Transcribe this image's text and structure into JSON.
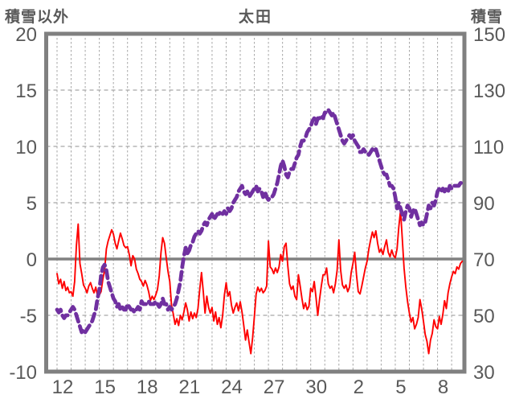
{
  "title": "太田",
  "colors": {
    "red_series": "#ff0000",
    "purple_series": "#7030a0",
    "axis_frame": "#808080",
    "zero_line": "#808080",
    "gridline": "#a6a6a6",
    "label_text": "#595959",
    "background": "#ffffff"
  },
  "chart_data": {
    "type": "line",
    "title": "太田",
    "left_axis": {
      "label": "積雪以外",
      "min": -10,
      "max": 20,
      "ticks": [
        20,
        15,
        10,
        5,
        0,
        -5,
        -10
      ]
    },
    "right_axis": {
      "label": "積雪",
      "min": 30,
      "max": 150,
      "ticks": [
        150,
        130,
        110,
        90,
        70,
        50,
        30
      ]
    },
    "x_axis": {
      "tick_labels": [
        "12",
        "15",
        "18",
        "21",
        "24",
        "27",
        "30",
        "2",
        "5",
        "8"
      ],
      "start": "1/12 00:00",
      "interval_hours": 3,
      "days_shown": 29,
      "gridlines": "daily-vertical-dashed"
    },
    "legend": "none",
    "grid": true,
    "series": [
      {
        "name": "積雪以外",
        "axis": "left",
        "color": "#ff0000",
        "line_style": "solid",
        "values": [
          -1.3,
          -2.2,
          -1.8,
          -2.6,
          -2.0,
          -2.8,
          -2.5,
          -3.0,
          -2.9,
          -3.3,
          -2.0,
          1.2,
          3.1,
          -0.4,
          -1.3,
          -2.3,
          -2.6,
          -3.0,
          -2.4,
          -2.1,
          -2.6,
          -3.0,
          -2.5,
          -3.3,
          -3.2,
          -2.9,
          -1.8,
          -1.0,
          0.9,
          1.6,
          2.1,
          2.6,
          2.2,
          1.4,
          0.9,
          1.6,
          2.3,
          1.8,
          1.2,
          1.0,
          1.1,
          0.4,
          -0.6,
          0.3,
          0.0,
          -0.9,
          -1.3,
          -1.8,
          -2.0,
          -2.4,
          -1.9,
          -2.3,
          -2.9,
          -3.7,
          -3.3,
          -3.6,
          -3.2,
          -2.7,
          -1.5,
          0.6,
          1.9,
          1.4,
          0.1,
          -1.1,
          -2.0,
          -4.1,
          -4.9,
          -5.8,
          -5.3,
          -5.9,
          -5.0,
          -5.4,
          -4.7,
          -3.9,
          -4.5,
          -5.5,
          -4.7,
          -5.3,
          -4.8,
          -5.2,
          -4.4,
          -2.7,
          -1.2,
          -2.9,
          -4.8,
          -3.3,
          -4.3,
          -4.8,
          -4.3,
          -5.5,
          -4.7,
          -5.8,
          -5.2,
          -6.1,
          -5.0,
          -3.2,
          -2.1,
          -3.3,
          -2.9,
          -4.1,
          -4.8,
          -4.3,
          -3.9,
          -4.6,
          -3.8,
          -4.7,
          -5.9,
          -7.2,
          -6.3,
          -7.4,
          -8.4,
          -7.0,
          -5.1,
          -3.1,
          -2.5,
          -2.9,
          -2.6,
          -3.0,
          -2.8,
          -2.4,
          1.6,
          -0.7,
          -0.9,
          -1.3,
          -0.8,
          -1.2,
          -0.7,
          0.4,
          -0.2,
          1.1,
          1.4,
          -0.6,
          -2.2,
          -2.7,
          -2.4,
          -3.3,
          -3.6,
          -1.4,
          -2.4,
          -3.5,
          -4.4,
          -3.9,
          -4.5,
          -4.2,
          -2.6,
          -2.9,
          -2.0,
          -3.4,
          -5.0,
          -3.6,
          -2.4,
          -1.4,
          -1.4,
          -0.8,
          -2.2,
          -2.6,
          -2.4,
          -3.0,
          -2.2,
          -1.0,
          1.7,
          -1.0,
          -2.3,
          -2.6,
          -2.3,
          -2.9,
          -2.5,
          -1.2,
          -0.4,
          0.6,
          -1.4,
          -2.9,
          -3.1,
          -2.4,
          -1.6,
          -0.8,
          -0.2,
          0.9,
          1.7,
          2.4,
          1.9,
          2.5,
          1.4,
          0.6,
          0.9,
          0.4,
          1.1,
          1.7,
          0.6,
          0.2,
          0.8,
          0.3,
          0.1,
          0.9,
          2.8,
          4.3,
          1.8,
          -0.8,
          -2.5,
          -3.8,
          -4.8,
          -5.6,
          -5.2,
          -6.2,
          -5.8,
          -5.2,
          -3.6,
          -4.4,
          -5.5,
          -6.7,
          -7.3,
          -8.4,
          -7.2,
          -6.6,
          -5.4,
          -6.0,
          -6.2,
          -5.1,
          -5.8,
          -4.9,
          -3.7,
          -4.4,
          -3.0,
          -2.2,
          -1.6,
          -1.1,
          -1.3,
          -0.7,
          -0.9,
          -0.4,
          -0.2
        ]
      },
      {
        "name": "積雪",
        "axis": "right",
        "unit": "cm",
        "color": "#7030a0",
        "line_style": "dashed",
        "values": [
          52,
          51,
          52,
          50,
          49,
          50,
          50,
          51,
          52,
          53,
          52,
          50,
          48,
          46,
          44,
          45,
          44,
          45,
          46,
          47,
          48,
          50,
          52,
          56,
          59,
          64,
          67,
          68,
          66,
          62,
          60,
          58,
          56,
          55,
          53,
          54,
          52,
          53,
          52,
          52,
          54,
          53,
          52,
          52,
          51,
          52,
          53,
          52,
          55,
          54,
          54,
          54,
          55,
          54,
          54,
          54,
          55,
          54,
          53,
          54,
          56,
          54,
          54,
          52,
          53,
          52,
          53,
          54,
          56,
          59,
          62,
          67,
          71,
          74,
          72,
          73,
          75,
          76,
          78,
          79,
          80,
          79,
          80,
          82,
          83,
          82,
          84,
          85,
          86,
          84,
          85,
          86,
          86,
          87,
          86,
          87,
          86,
          88,
          87,
          88,
          90,
          91,
          92,
          94,
          95,
          96,
          94,
          93,
          94,
          92,
          93,
          94,
          95,
          96,
          94,
          95,
          94,
          92,
          94,
          92,
          91,
          92,
          92,
          93,
          95,
          97,
          100,
          103,
          105,
          103,
          100,
          99,
          101,
          102,
          102,
          104,
          106,
          107,
          110,
          112,
          112,
          113,
          115,
          116,
          117,
          119,
          120,
          118,
          120,
          120,
          121,
          120,
          122,
          122,
          123,
          122,
          121,
          122,
          120,
          118,
          116,
          114,
          112,
          111,
          112,
          113,
          114,
          113,
          114,
          112,
          111,
          110,
          108,
          108,
          109,
          108,
          108,
          107,
          108,
          109,
          108,
          109,
          107,
          105,
          103,
          101,
          100,
          100,
          98,
          96,
          96,
          95,
          92,
          88,
          90,
          88,
          86,
          84,
          87,
          89,
          88,
          85,
          87,
          88,
          86,
          84,
          82,
          83,
          82,
          83,
          86,
          89,
          88,
          90,
          89,
          91,
          94,
          95,
          94,
          95,
          94,
          95,
          94,
          96,
          95,
          96,
          96,
          96,
          96,
          97,
          97
        ]
      }
    ]
  }
}
